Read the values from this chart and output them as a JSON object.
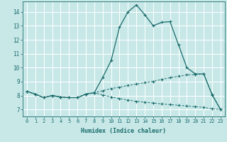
{
  "xlabel": "Humidex (Indice chaleur)",
  "bg_color": "#c8e8e8",
  "grid_color": "#ffffff",
  "line_color": "#1a6b6b",
  "xlim": [
    -0.5,
    23.5
  ],
  "ylim": [
    6.5,
    14.75
  ],
  "xticks": [
    0,
    1,
    2,
    3,
    4,
    5,
    6,
    7,
    8,
    9,
    10,
    11,
    12,
    13,
    14,
    15,
    16,
    17,
    18,
    19,
    20,
    21,
    22,
    23
  ],
  "yticks": [
    7,
    8,
    9,
    10,
    11,
    12,
    13,
    14
  ],
  "line1_x": [
    0,
    1,
    2,
    3,
    4,
    5,
    6,
    7,
    8,
    9,
    10,
    11,
    12,
    13,
    14,
    15,
    16,
    17,
    18,
    19,
    20,
    21,
    22,
    23
  ],
  "line1_y": [
    8.3,
    8.1,
    7.85,
    8.0,
    7.9,
    7.85,
    7.85,
    8.1,
    8.2,
    9.3,
    10.5,
    12.9,
    14.0,
    14.5,
    13.8,
    13.0,
    13.25,
    13.3,
    11.65,
    10.0,
    9.55,
    9.55,
    8.05,
    7.0
  ],
  "line2_x": [
    0,
    1,
    2,
    3,
    4,
    5,
    6,
    7,
    8,
    9,
    10,
    11,
    12,
    13,
    14,
    15,
    16,
    17,
    18,
    19,
    20,
    21,
    22,
    23
  ],
  "line2_y": [
    8.3,
    8.1,
    7.85,
    8.0,
    7.9,
    7.85,
    7.85,
    8.1,
    8.2,
    8.35,
    8.5,
    8.6,
    8.72,
    8.82,
    8.92,
    9.02,
    9.15,
    9.28,
    9.38,
    9.48,
    9.5,
    9.55,
    8.1,
    7.0
  ],
  "line3_x": [
    0,
    1,
    2,
    3,
    4,
    5,
    6,
    7,
    8,
    9,
    10,
    11,
    12,
    13,
    14,
    15,
    16,
    17,
    18,
    19,
    20,
    21,
    22,
    23
  ],
  "line3_y": [
    8.3,
    8.1,
    7.85,
    8.0,
    7.9,
    7.85,
    7.85,
    8.1,
    8.2,
    8.05,
    7.9,
    7.78,
    7.68,
    7.58,
    7.52,
    7.46,
    7.4,
    7.35,
    7.3,
    7.25,
    7.2,
    7.15,
    7.05,
    7.0
  ]
}
